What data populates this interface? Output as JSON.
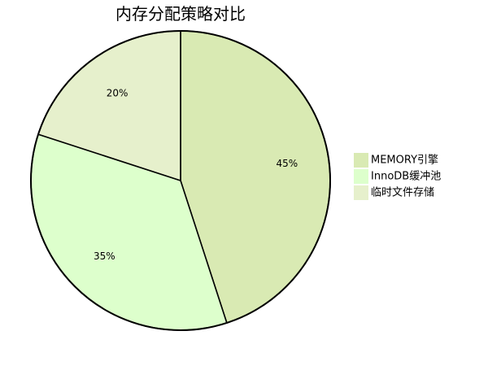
{
  "chart_data": {
    "type": "pie",
    "title": "内存分配策略对比",
    "categories": [
      "MEMORY引擎",
      "InnoDB缓冲池",
      "临时文件存储"
    ],
    "values": [
      45,
      35,
      20
    ],
    "value_labels": [
      "45%",
      "35%",
      "20%"
    ],
    "colors": [
      "#d9eab3",
      "#ddffcc",
      "#e6f0cc"
    ],
    "legend_placement": "right",
    "start_angle": "top",
    "direction": "clockwise"
  }
}
